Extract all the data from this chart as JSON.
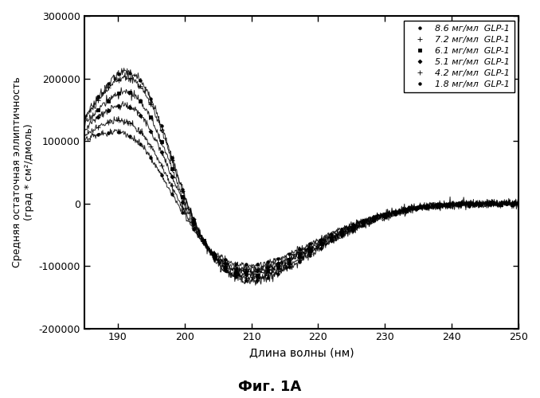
{
  "title": "Фиг. 1А",
  "ylabel": "Средняя остаточная эллиптичность\n(град * см²/дмоль)",
  "xlabel": "Длина волны (нм)",
  "xlim": [
    185,
    250
  ],
  "ylim": [
    -200000,
    300000
  ],
  "xticks": [
    190,
    200,
    210,
    220,
    230,
    240,
    250
  ],
  "yticks": [
    -200000,
    -100000,
    0,
    100000,
    200000,
    300000
  ],
  "legend_labels": [
    "8.6 мг/мл  GLP-1",
    "7.2 мг/мл  GLP-1",
    "6.1 мг/мл  GLP-1",
    "5.1 мг/мл  GLP-1",
    "4.2 мг/мл  GLP-1",
    "1.8 мг/мл  GLP-1"
  ],
  "background_color": "#ffffff",
  "peak_scales": [
    1.95,
    1.85,
    1.6,
    1.38,
    1.12,
    0.9
  ],
  "trough_scales": [
    1.0,
    0.97,
    0.92,
    0.88,
    0.85,
    0.8
  ],
  "markers": [
    "o",
    "+",
    "s",
    "D",
    "+",
    "o"
  ],
  "noise_amplitudes": [
    3500,
    3200,
    3000,
    2800,
    2600,
    2400
  ]
}
